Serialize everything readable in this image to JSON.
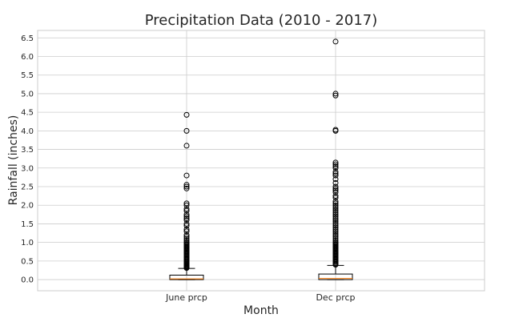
{
  "chart_data": {
    "type": "box",
    "title": "Precipitation Data (2010 - 2017)",
    "xlabel": "Month",
    "ylabel": "Rainfall (inches)",
    "ylim": [
      -0.3,
      6.7
    ],
    "yticks": [
      "0.0",
      "0.5",
      "1.0",
      "1.5",
      "2.0",
      "2.5",
      "3.0",
      "3.5",
      "4.0",
      "4.5",
      "5.0",
      "5.5",
      "6.0",
      "6.5"
    ],
    "grid": true,
    "colors": {
      "box": "#000000",
      "median": "#ff7f0e",
      "grid": "#cccccc",
      "spine": "#cccccc",
      "text": "#262626"
    },
    "categories": [
      "June prcp",
      "Dec prcp"
    ],
    "boxes": [
      {
        "name": "June prcp",
        "min": 0.0,
        "q1": 0.0,
        "median": 0.02,
        "q3": 0.12,
        "whisker_high": 0.3,
        "outliers": [
          0.31,
          0.33,
          0.35,
          0.37,
          0.39,
          0.41,
          0.43,
          0.45,
          0.47,
          0.5,
          0.53,
          0.55,
          0.58,
          0.6,
          0.63,
          0.65,
          0.68,
          0.7,
          0.73,
          0.75,
          0.78,
          0.8,
          0.83,
          0.85,
          0.88,
          0.9,
          0.93,
          0.95,
          0.98,
          1.0,
          1.05,
          1.1,
          1.15,
          1.2,
          1.3,
          1.35,
          1.45,
          1.5,
          1.6,
          1.65,
          1.7,
          1.75,
          1.85,
          1.9,
          2.0,
          2.05,
          2.45,
          2.5,
          2.55,
          2.8,
          3.6,
          4.0,
          4.43
        ]
      },
      {
        "name": "Dec prcp",
        "min": 0.0,
        "q1": 0.0,
        "median": 0.03,
        "q3": 0.15,
        "whisker_high": 0.38,
        "outliers": [
          0.4,
          0.42,
          0.45,
          0.48,
          0.5,
          0.53,
          0.55,
          0.58,
          0.6,
          0.63,
          0.65,
          0.68,
          0.7,
          0.73,
          0.75,
          0.78,
          0.8,
          0.83,
          0.85,
          0.88,
          0.9,
          0.93,
          0.95,
          0.98,
          1.0,
          1.05,
          1.1,
          1.15,
          1.2,
          1.25,
          1.3,
          1.35,
          1.4,
          1.45,
          1.5,
          1.55,
          1.6,
          1.65,
          1.7,
          1.75,
          1.8,
          1.85,
          1.9,
          1.95,
          2.0,
          2.05,
          2.1,
          2.2,
          2.25,
          2.35,
          2.4,
          2.45,
          2.5,
          2.6,
          2.7,
          2.8,
          2.85,
          2.9,
          3.0,
          3.05,
          3.1,
          3.15,
          4.0,
          4.03,
          4.95,
          5.0,
          6.4
        ]
      }
    ]
  }
}
